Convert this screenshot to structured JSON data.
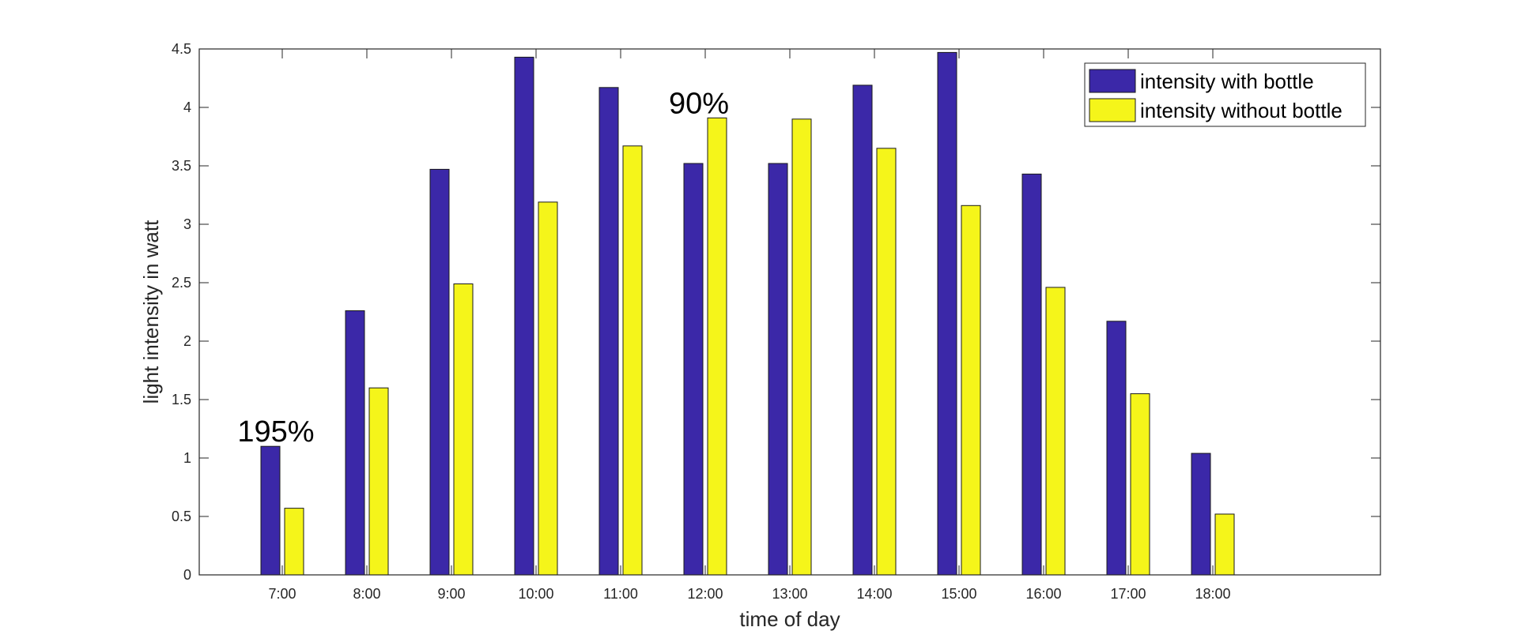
{
  "chart_data": {
    "type": "bar",
    "title": "",
    "xlabel": "time of day",
    "ylabel": "light intensity in watt",
    "categories": [
      "7:00",
      "8:00",
      "9:00",
      "10:00",
      "11:00",
      "12:00",
      "13:00",
      "14:00",
      "15:00",
      "16:00",
      "17:00",
      "18:00"
    ],
    "series": [
      {
        "name": "intensity with bottle",
        "color": "#3b28a8",
        "values": [
          1.1,
          2.26,
          3.47,
          4.43,
          4.17,
          3.52,
          3.52,
          4.19,
          4.47,
          3.43,
          2.17,
          1.04
        ]
      },
      {
        "name": "intensity without bottle",
        "color": "#f5f51a",
        "values": [
          0.57,
          1.6,
          2.49,
          3.19,
          3.67,
          3.91,
          3.9,
          3.65,
          3.16,
          2.46,
          1.55,
          0.52
        ]
      }
    ],
    "ylim": [
      0,
      4.5
    ],
    "yticks": [
      "0",
      "0.5",
      "1",
      "1.5",
      "2",
      "2.5",
      "3",
      "3.5",
      "4",
      "4.5"
    ],
    "grid": false,
    "legend_position": "top-right",
    "annotations": [
      {
        "text": "195%",
        "category": "7:00"
      },
      {
        "text": "90%",
        "category": "12:00"
      }
    ]
  }
}
